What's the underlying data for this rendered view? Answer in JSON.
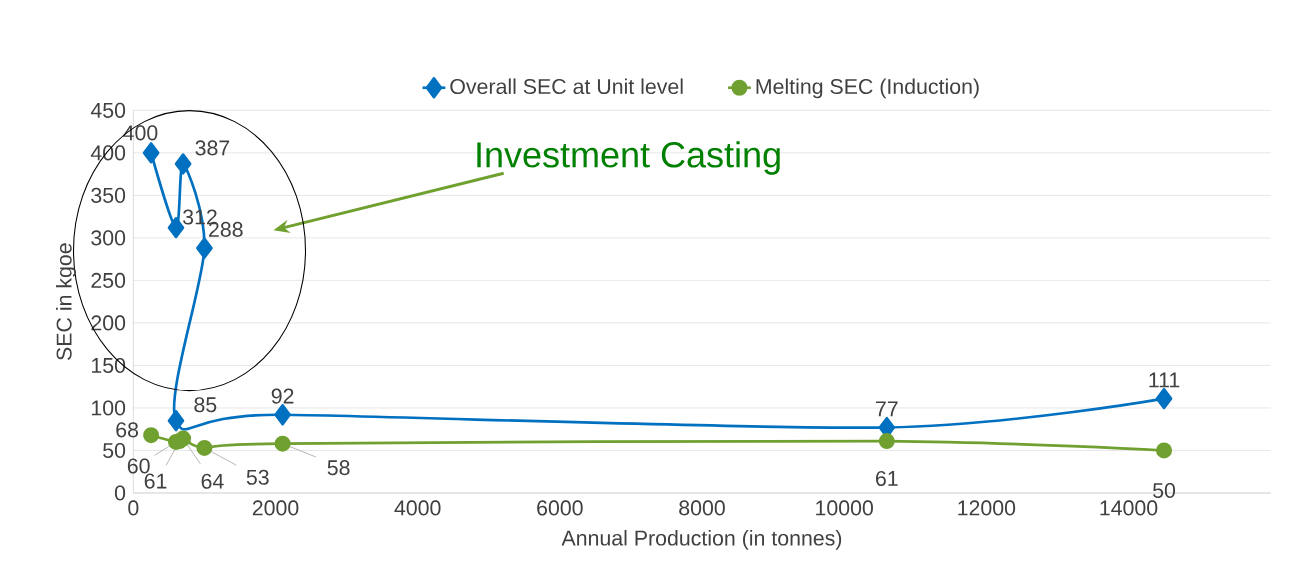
{
  "chart_data": {
    "type": "line",
    "xlabel": "Annual Production (in tonnes)",
    "ylabel": "SEC in kgoe",
    "xlim": [
      0,
      16000
    ],
    "xticks": [
      0,
      2000,
      4000,
      6000,
      8000,
      10000,
      12000,
      14000
    ],
    "ylim": [
      0,
      450
    ],
    "yticks": [
      0,
      50,
      100,
      150,
      200,
      250,
      300,
      350,
      400,
      450
    ],
    "grid": "y",
    "legend": "top",
    "data_labels": true,
    "annotations": [
      "Investment Casting"
    ],
    "series": [
      {
        "name": "Overall SEC at Unit level",
        "color": "#0070c0",
        "marker": "diamond",
        "x": [
          250,
          600,
          700,
          1000,
          600,
          2100,
          10600,
          14500
        ],
        "values": [
          400,
          312,
          387,
          288,
          85,
          92,
          77,
          111
        ]
      },
      {
        "name": "Melting SEC (Induction)",
        "color": "#70a030",
        "marker": "circle",
        "x": [
          250,
          600,
          650,
          700,
          1000,
          2100,
          10600,
          14500
        ],
        "values": [
          68,
          60,
          61,
          64,
          53,
          58,
          61,
          50
        ]
      }
    ]
  }
}
